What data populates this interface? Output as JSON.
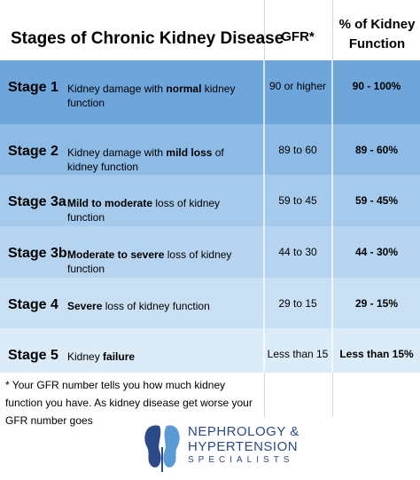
{
  "header": {
    "title": "Stages of Chronic Kidney Disease",
    "gfr": "GFR*",
    "percent": "% of Kidney Function"
  },
  "rows": [
    {
      "stage": "Stage 1",
      "description": [
        {
          "text": "Kidney damage with "
        },
        {
          "text": "normal",
          "bold": true
        },
        {
          "text": " kidney function"
        }
      ],
      "gfr": "90 or higher",
      "percent": "90 -  100%"
    },
    {
      "stage": "Stage 2",
      "description": [
        {
          "text": "Kidney damage with "
        },
        {
          "text": "mild loss",
          "bold": true
        },
        {
          "text": " of kidney function"
        }
      ],
      "gfr": "89 to 60",
      "percent": "89 - 60%"
    },
    {
      "stage": "Stage 3a",
      "description": [
        {
          "text": "Mild to moderate",
          "bold": true
        },
        {
          "text": " loss of kidney function"
        }
      ],
      "gfr": "59 to 45",
      "percent": "59 -  45%"
    },
    {
      "stage": "Stage 3b",
      "description": [
        {
          "text": "Moderate to severe",
          "bold": true
        },
        {
          "text": " loss of kidney function"
        }
      ],
      "gfr": "44 to 30",
      "percent": "44 -  30%"
    },
    {
      "stage": "Stage 4",
      "description": [
        {
          "text": "Severe",
          "bold": true
        },
        {
          "text": " loss of kidney function"
        }
      ],
      "gfr": "29 to 15",
      "percent": "29 -  15%"
    },
    {
      "stage": "Stage 5",
      "description": [
        {
          "text": "Kidney "
        },
        {
          "text": "failure",
          "bold": true
        }
      ],
      "gfr": "Less than 15",
      "percent": "Less than 15%"
    }
  ],
  "footnote": "* Your GFR number tells you how much kidney function you have. As kidney disease get worse your GFR number goes",
  "logo": {
    "line1": "NEPHROLOGY &",
    "line2": "HYPERTENSION",
    "line3": "SPECIALISTS"
  }
}
